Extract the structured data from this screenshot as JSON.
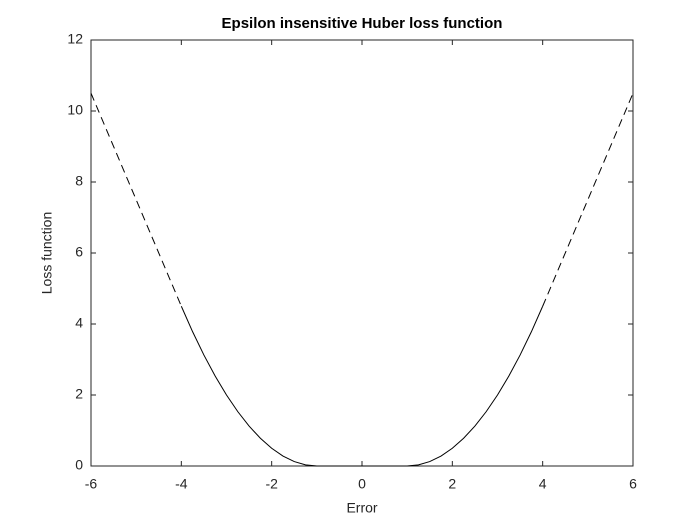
{
  "chart_data": {
    "type": "line",
    "title": "Epsilon insensitive Huber loss function",
    "x_label": "Error",
    "y_label": "Loss function",
    "xlim": [
      -6,
      6
    ],
    "xticks": [
      -6,
      -4,
      -2,
      0,
      2,
      4,
      6
    ],
    "ylim": [
      0,
      12
    ],
    "yticks": [
      0,
      2,
      4,
      6,
      8,
      10,
      12
    ],
    "grid": false,
    "box": true,
    "series": [
      {
        "color": "#000000",
        "dash": "solid",
        "x": [
          -4,
          -3.75,
          -3.5,
          -3.25,
          -3,
          -2.75,
          -2.5,
          -2.25,
          -2,
          -1.75,
          -1.5,
          -1.25,
          -1,
          -0.75,
          -0.5,
          -0.25,
          0,
          0.25,
          0.5,
          0.75,
          1,
          1.25,
          1.5,
          1.75,
          2,
          2.25,
          2.5,
          2.75,
          3,
          3.25,
          3.5,
          3.75,
          4
        ],
        "values": [
          4.5,
          3.78125,
          3.125,
          2.53125,
          2,
          1.53125,
          1.125,
          0.78125,
          0.5,
          0.28125,
          0.125,
          0.03125,
          0,
          0,
          0,
          0,
          0,
          0,
          0,
          0,
          0,
          0.03125,
          0.125,
          0.28125,
          0.5,
          0.78125,
          1.125,
          1.53125,
          2,
          2.53125,
          3.125,
          3.78125,
          4.5
        ]
      },
      {
        "color": "#000000",
        "dash": "dashed",
        "x": [
          -6,
          -4,
          0,
          4,
          6
        ],
        "values": [
          10.5,
          4.5,
          null,
          4.5,
          10.5
        ]
      }
    ]
  }
}
